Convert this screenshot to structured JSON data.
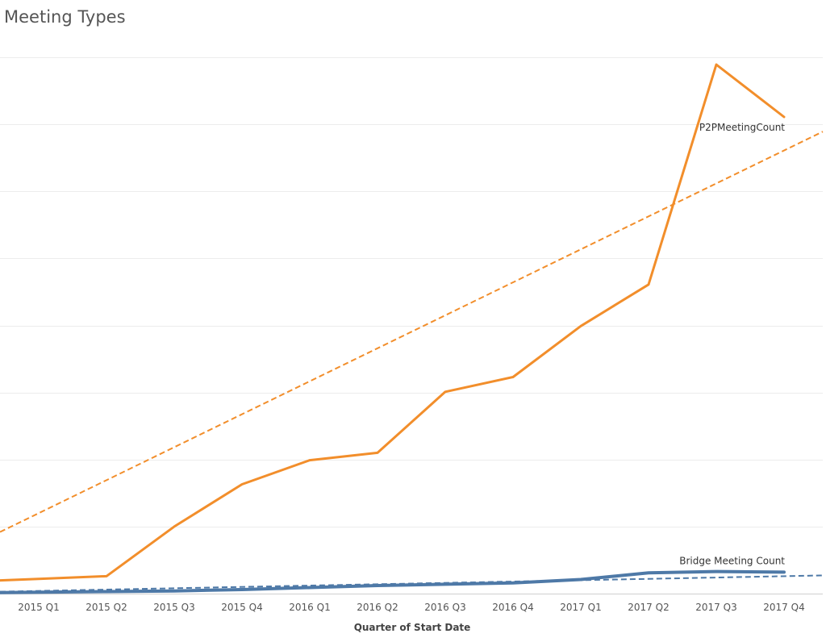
{
  "chart_data": {
    "type": "line",
    "title": "Meeting Types",
    "xlabel": "Quarter of Start Date",
    "ylabel": "",
    "categories": [
      "2015 Q1",
      "2015 Q2",
      "2015 Q3",
      "2015 Q4",
      "2016 Q1",
      "2016 Q2",
      "2016 Q3",
      "2016 Q4",
      "2017 Q1",
      "2017 Q2",
      "2017 Q3",
      "2017 Q4"
    ],
    "ylim": [
      0,
      8
    ],
    "grid": true,
    "legend": "none",
    "series": [
      {
        "name": "P2PMeetingCount",
        "color": "#f28e2b",
        "values": [
          0.22,
          0.26,
          1.0,
          1.63,
          1.99,
          2.1,
          3.01,
          3.23,
          3.99,
          4.61,
          7.89,
          7.11
        ],
        "trend": [
          1.2,
          1.69,
          2.18,
          2.68,
          3.17,
          3.66,
          4.15,
          4.64,
          5.13,
          5.63,
          6.12,
          6.61
        ]
      },
      {
        "name": "Bridge Meeting Count",
        "color": "#4e79a7",
        "values": [
          0.02,
          0.03,
          0.04,
          0.06,
          0.09,
          0.12,
          0.14,
          0.16,
          0.21,
          0.31,
          0.33,
          0.32
        ],
        "trend": [
          0.04,
          0.06,
          0.08,
          0.1,
          0.12,
          0.14,
          0.16,
          0.18,
          0.2,
          0.22,
          0.24,
          0.26
        ]
      }
    ]
  }
}
